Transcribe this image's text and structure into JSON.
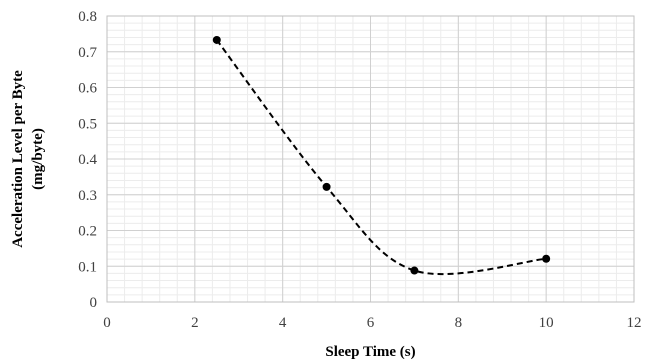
{
  "chart_data": {
    "type": "scatter",
    "title": "",
    "xlabel": "Sleep Time (s)",
    "ylabel_lines": [
      "Acceleration Level per Byte",
      "(mg/byte)"
    ],
    "xlim": [
      0,
      12
    ],
    "ylim": [
      0,
      0.8
    ],
    "x_ticks": [
      0,
      2,
      4,
      6,
      8,
      10,
      12
    ],
    "y_ticks": [
      0,
      0.1,
      0.2,
      0.3,
      0.4,
      0.5,
      0.6,
      0.7,
      0.8
    ],
    "x_tick_labels": [
      "0",
      "2",
      "4",
      "6",
      "8",
      "10",
      "12"
    ],
    "y_tick_labels": [
      "0",
      "0.1",
      "0.2",
      "0.3",
      "0.4",
      "0.5",
      "0.6",
      "0.7",
      "0.8"
    ],
    "grid": true,
    "legend": "none",
    "series": [
      {
        "x": [
          2.5,
          5,
          7,
          10
        ],
        "y": [
          0.733,
          0.322,
          0.088,
          0.121
        ],
        "marker_color": "#000000",
        "trendline": "smoothed-dashed"
      }
    ]
  }
}
